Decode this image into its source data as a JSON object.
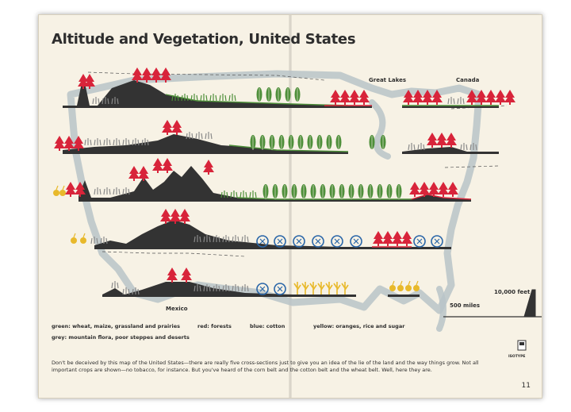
{
  "title": "Altitude and Vegetation, United States",
  "map_labels": {
    "great_lakes": "Great Lakes",
    "canada": "Canada",
    "mexico": "Mexico"
  },
  "scale": {
    "height": "10,000 feet",
    "distance": "500 miles"
  },
  "legend": {
    "green": "green:  wheat,  maize,  grassland  and  prairies",
    "red": "red:  forests",
    "blue": "blue:  cotton",
    "yellow": "yellow:  oranges,  rice  and  sugar",
    "grey": "grey:  mountain  flora,  poor  steppes  and  deserts"
  },
  "caption": "Don't be deceived by this map of the United States—there are really five cross-sections just to give you an idea of the lie of the land and the way things grow.  Not all important crops are shown—no tobacco, for instance.  But you've heard of the corn belt and the cotton belt and the wheat belt.  Well, here they are.",
  "isotype": "ISOTYPE",
  "page_number": "11",
  "colors": {
    "green": "#4e8f3a",
    "red": "#d8243a",
    "blue": "#2a66a8",
    "yellow": "#e8b92b",
    "grey": "#8a8a8a",
    "land": "#333333",
    "map": "#b8c4c8"
  }
}
